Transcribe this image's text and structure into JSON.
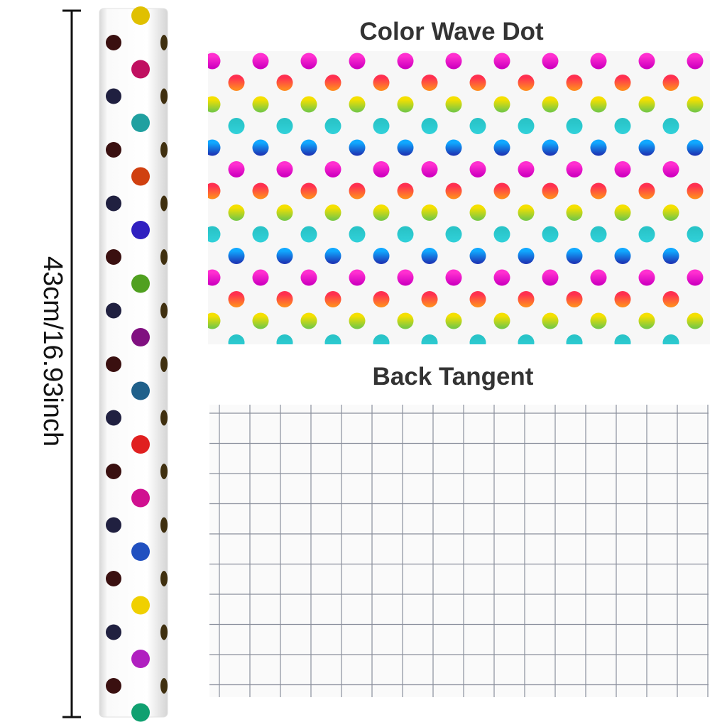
{
  "dimension": {
    "label": "43cm/16.93inch"
  },
  "front": {
    "title": "Color Wave Dot"
  },
  "back": {
    "title": "Back Tangent"
  }
}
